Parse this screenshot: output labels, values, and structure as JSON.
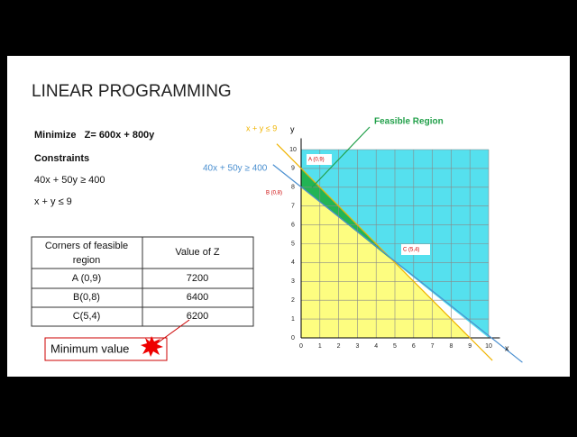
{
  "slide": {
    "title": "LINEAR PROGRAMMING",
    "objective": "Minimize   Z= 600x + 800y",
    "constraints_heading": "Constraints",
    "constraints": [
      "40x + 50y ≥ 400",
      "x + y ≤ 9"
    ],
    "table": {
      "headers": [
        "Corners of feasible region",
        "Value of Z"
      ],
      "rows": [
        [
          "A (0,9)",
          "7200"
        ],
        [
          "B(0,8)",
          "6400"
        ],
        [
          "C(5,4)",
          "6200"
        ]
      ]
    },
    "callout": "Minimum value",
    "graph": {
      "x_label": "x",
      "y_label": "y",
      "xticks": [
        0,
        1,
        2,
        3,
        4,
        5,
        6,
        7,
        8,
        9,
        10
      ],
      "yticks": [
        0,
        1,
        2,
        3,
        4,
        5,
        6,
        7,
        8,
        9,
        10
      ],
      "feasible_label": "Feasible Region",
      "line1_label": "x + y ≤ 9",
      "line2_label": "40x + 50y  ≥  400",
      "points": [
        "A (0,9)",
        "B (0,8)",
        "C  (5,4)"
      ]
    }
  }
}
